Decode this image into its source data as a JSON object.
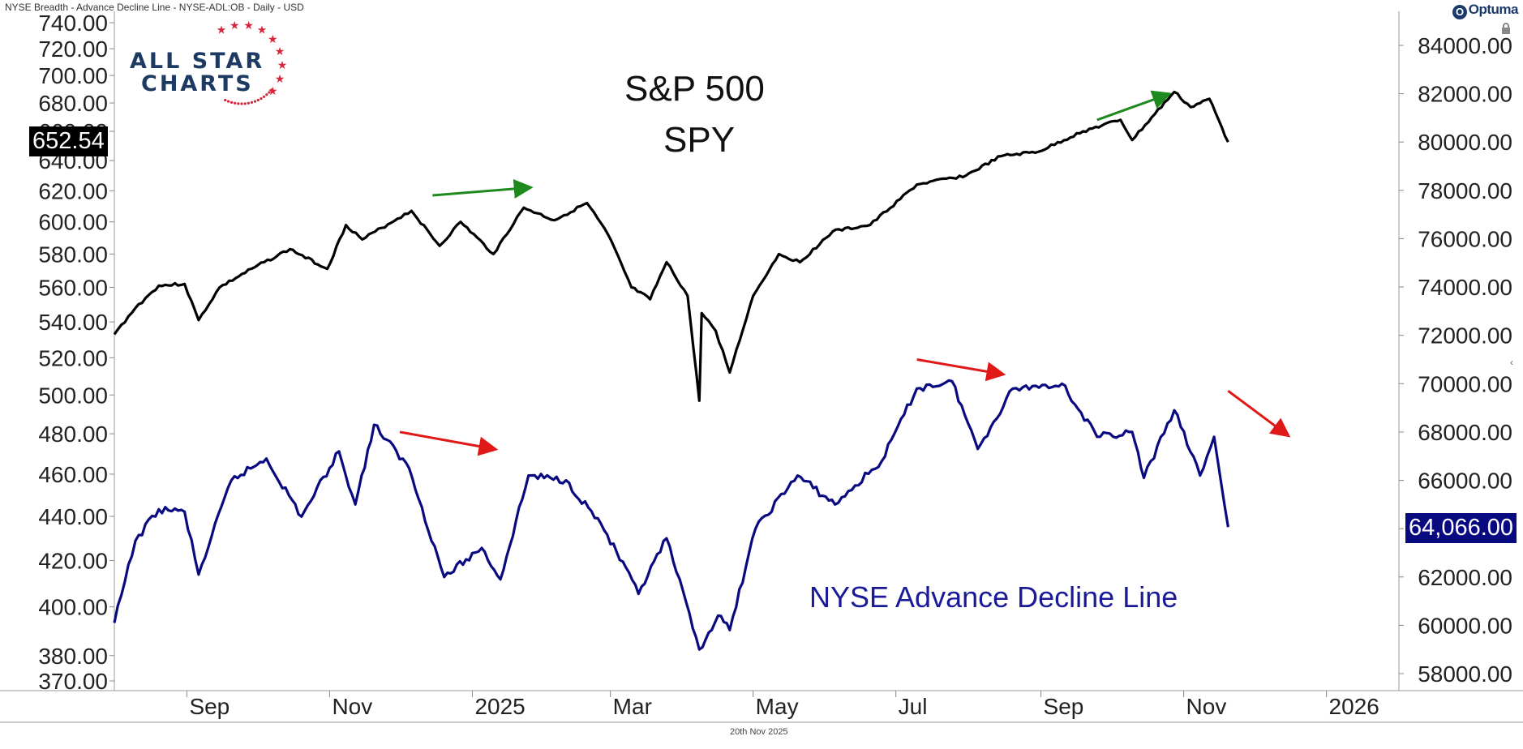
{
  "header": {
    "title": "NYSE Breadth - Advance Decline Line - NYSE-ADL:OB - Daily - USD",
    "brand": "Optuma"
  },
  "logo": {
    "line1": "ALL STAR",
    "line2": "CHARTS"
  },
  "footer": {
    "date": "20th Nov 2025"
  },
  "tags": {
    "spy_last": "652.54",
    "adl_last": "64,066.00"
  },
  "chart_data": {
    "type": "line",
    "title": "S&P 500",
    "subtitle": "SPY",
    "x_ticks": [
      "Sep",
      "Nov",
      "2025",
      "Mar",
      "May",
      "Jul",
      "Sep",
      "Nov",
      "2026"
    ],
    "x_range": [
      "2024-08",
      "2026-02"
    ],
    "left_axis": {
      "scale": "log",
      "ticks": [
        "740.00",
        "720.00",
        "700.00",
        "680.00",
        "660.00",
        "640.00",
        "620.00",
        "600.00",
        "580.00",
        "560.00",
        "540.00",
        "520.00",
        "500.00",
        "480.00",
        "460.00",
        "440.00",
        "420.00",
        "400.00",
        "380.00",
        "370.00"
      ]
    },
    "right_axis": {
      "scale": "linear",
      "ticks": [
        "84000.00",
        "82000.00",
        "80000.00",
        "78000.00",
        "76000.00",
        "74000.00",
        "72000.00",
        "70000.00",
        "68000.00",
        "66000.00",
        "64000.00",
        "62000.00",
        "60000.00",
        "58000.00"
      ]
    },
    "series": [
      {
        "name": "SPY",
        "axis": "left",
        "color": "#000000",
        "points": [
          [
            "2024-08-01",
            533
          ],
          [
            "2024-08-10",
            548
          ],
          [
            "2024-08-20",
            561
          ],
          [
            "2024-08-31",
            562
          ],
          [
            "2024-09-06",
            541
          ],
          [
            "2024-09-15",
            560
          ],
          [
            "2024-09-30",
            572
          ],
          [
            "2024-10-15",
            583
          ],
          [
            "2024-10-31",
            571
          ],
          [
            "2024-11-08",
            598
          ],
          [
            "2024-11-15",
            589
          ],
          [
            "2024-11-30",
            602
          ],
          [
            "2024-12-06",
            607
          ],
          [
            "2024-12-18",
            585
          ],
          [
            "2024-12-27",
            600
          ],
          [
            "2025-01-10",
            580
          ],
          [
            "2025-01-23",
            609
          ],
          [
            "2025-02-05",
            601
          ],
          [
            "2025-02-19",
            612
          ],
          [
            "2025-02-28",
            592
          ],
          [
            "2025-03-10",
            560
          ],
          [
            "2025-03-18",
            553
          ],
          [
            "2025-03-25",
            575
          ],
          [
            "2025-04-03",
            555
          ],
          [
            "2025-04-08",
            497
          ],
          [
            "2025-04-09",
            545
          ],
          [
            "2025-04-15",
            535
          ],
          [
            "2025-04-21",
            512
          ],
          [
            "2025-05-01",
            555
          ],
          [
            "2025-05-12",
            580
          ],
          [
            "2025-05-21",
            575
          ],
          [
            "2025-06-04",
            594
          ],
          [
            "2025-06-20",
            598
          ],
          [
            "2025-07-10",
            624
          ],
          [
            "2025-07-31",
            630
          ],
          [
            "2025-08-15",
            643
          ],
          [
            "2025-08-31",
            646
          ],
          [
            "2025-09-19",
            660
          ],
          [
            "2025-10-05",
            668
          ],
          [
            "2025-10-10",
            654
          ],
          [
            "2025-10-28",
            688
          ],
          [
            "2025-11-04",
            677
          ],
          [
            "2025-11-12",
            683
          ],
          [
            "2025-11-20",
            652.54
          ]
        ]
      },
      {
        "name": "NYSE Advance Decline Line",
        "axis": "right",
        "color": "#0a0a80",
        "points": [
          [
            "2024-08-01",
            60100
          ],
          [
            "2024-08-10",
            63500
          ],
          [
            "2024-08-20",
            64800
          ],
          [
            "2024-08-31",
            64700
          ],
          [
            "2024-09-06",
            62100
          ],
          [
            "2024-09-20",
            66000
          ],
          [
            "2024-10-05",
            66900
          ],
          [
            "2024-10-20",
            64500
          ],
          [
            "2024-11-05",
            67200
          ],
          [
            "2024-11-12",
            65000
          ],
          [
            "2024-11-20",
            68300
          ],
          [
            "2024-12-05",
            66500
          ],
          [
            "2024-12-20",
            62000
          ],
          [
            "2025-01-05",
            63200
          ],
          [
            "2025-01-13",
            61900
          ],
          [
            "2025-01-25",
            66200
          ],
          [
            "2025-02-10",
            66000
          ],
          [
            "2025-02-25",
            64200
          ],
          [
            "2025-03-13",
            61300
          ],
          [
            "2025-03-25",
            63600
          ],
          [
            "2025-04-08",
            59000
          ],
          [
            "2025-04-16",
            60400
          ],
          [
            "2025-04-21",
            59800
          ],
          [
            "2025-05-02",
            64000
          ],
          [
            "2025-05-20",
            66200
          ],
          [
            "2025-06-05",
            65000
          ],
          [
            "2025-06-25",
            66800
          ],
          [
            "2025-07-10",
            69800
          ],
          [
            "2025-07-25",
            70100
          ],
          [
            "2025-08-05",
            67300
          ],
          [
            "2025-08-20",
            69800
          ],
          [
            "2025-09-10",
            70000
          ],
          [
            "2025-09-25",
            67800
          ],
          [
            "2025-10-10",
            68000
          ],
          [
            "2025-10-15",
            66100
          ],
          [
            "2025-10-28",
            68900
          ],
          [
            "2025-11-08",
            66200
          ],
          [
            "2025-11-14",
            67800
          ],
          [
            "2025-11-20",
            64066
          ]
        ]
      }
    ],
    "annotations": [
      {
        "type": "arrow",
        "color": "green",
        "from": [
          "2024-12-15",
          617
        ],
        "to": [
          "2025-01-25",
          622
        ]
      },
      {
        "type": "arrow",
        "color": "green",
        "from": [
          "2025-09-25",
          668
        ],
        "to": [
          "2025-10-25",
          686
        ]
      },
      {
        "type": "arrow",
        "color": "red",
        "from": [
          "2024-12-01",
          68000
        ],
        "to": [
          "2025-01-10",
          67300
        ]
      },
      {
        "type": "arrow",
        "color": "red",
        "from": [
          "2025-07-10",
          71000
        ],
        "to": [
          "2025-08-15",
          70400
        ]
      },
      {
        "type": "arrow",
        "color": "red",
        "from": [
          "2025-11-20",
          69700
        ],
        "to": [
          "2025-12-15",
          67900
        ]
      }
    ],
    "grid": false,
    "legend": "none"
  }
}
